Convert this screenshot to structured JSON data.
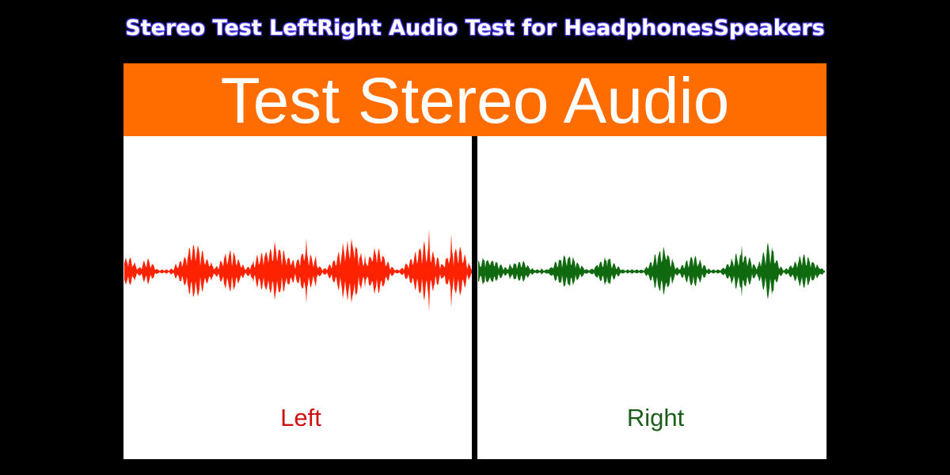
{
  "title": "Stereo Test  LeftRight Audio Test for HeadphonesSpeakers",
  "banner": {
    "text": "Test Stereo Audio",
    "color": "#ff6c00"
  },
  "channels": [
    {
      "label": "Left",
      "color": "#ff2200",
      "label_color": "#cc1111"
    },
    {
      "label": "Right",
      "color": "#0f6a0f",
      "label_color": "#1a5e1a"
    }
  ],
  "icons": [
    "waveform-left",
    "waveform-right"
  ]
}
